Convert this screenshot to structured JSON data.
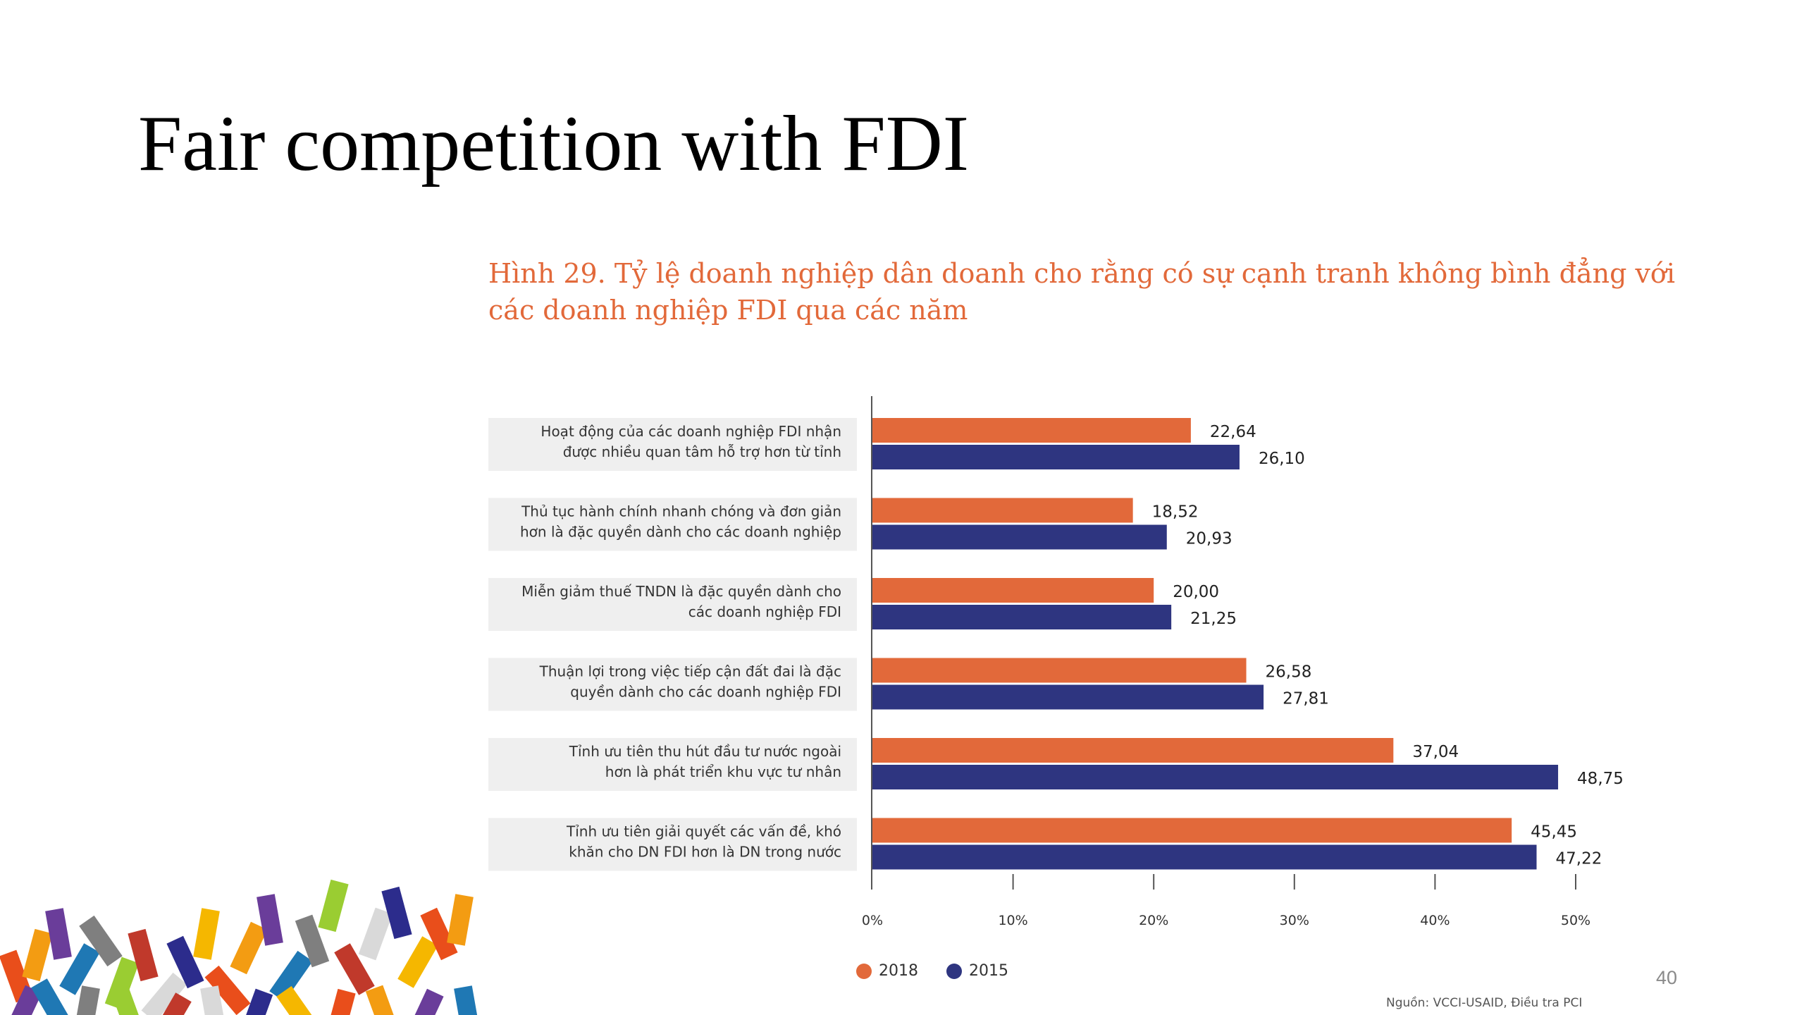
{
  "slide": {
    "title": "Fair competition with FDI",
    "page_number": "40"
  },
  "chart_data": {
    "type": "bar",
    "orientation": "horizontal",
    "title_lines": [
      "Hình 29. Tỷ lệ doanh nghiệp dân doanh cho rằng có sự cạnh tranh không bình đẳng với",
      "các doanh nghiệp FDI qua các năm"
    ],
    "categories": [
      [
        "Hoạt động của các doanh nghiệp FDI nhận",
        "được nhiều quan tâm hỗ trợ hơn từ tỉnh"
      ],
      [
        "Thủ tục hành chính nhanh chóng và đơn giản",
        "hơn là đặc quyền dành cho các doanh nghiệp"
      ],
      [
        "Miễn giảm thuế TNDN là đặc quyền dành cho",
        "các doanh nghiệp FDI"
      ],
      [
        "Thuận lợi trong việc tiếp cận đất đai là đặc",
        "quyền dành cho các doanh nghiệp FDI"
      ],
      [
        "Tỉnh ưu tiên thu hút đầu tư nước ngoài",
        "hơn là phát triển khu vực tư nhân"
      ],
      [
        "Tỉnh ưu tiên giải quyết các vấn đề, khó",
        "khăn cho DN FDI hơn là DN trong nước"
      ]
    ],
    "series": [
      {
        "name": "2018",
        "color": "#e2693a",
        "values": [
          22.64,
          18.52,
          20.0,
          26.58,
          37.04,
          45.45
        ],
        "labels": [
          "22,64",
          "18,52",
          "20,00",
          "26,58",
          "37,04",
          "45,45"
        ]
      },
      {
        "name": "2015",
        "color": "#2e3580",
        "values": [
          26.1,
          20.93,
          21.25,
          27.81,
          48.75,
          47.22
        ],
        "labels": [
          "26,10",
          "20,93",
          "21,25",
          "27,81",
          "48,75",
          "47,22"
        ]
      }
    ],
    "xlim": [
      0,
      50
    ],
    "x_ticks": [
      0,
      10,
      20,
      30,
      40,
      50
    ],
    "x_tick_labels": [
      "0%",
      "10%",
      "20%",
      "30%",
      "40%",
      "50%"
    ],
    "legend_position": "bottom-left",
    "grid": false,
    "source": "Nguồn: VCCI-USAID, Điều tra PCI"
  }
}
